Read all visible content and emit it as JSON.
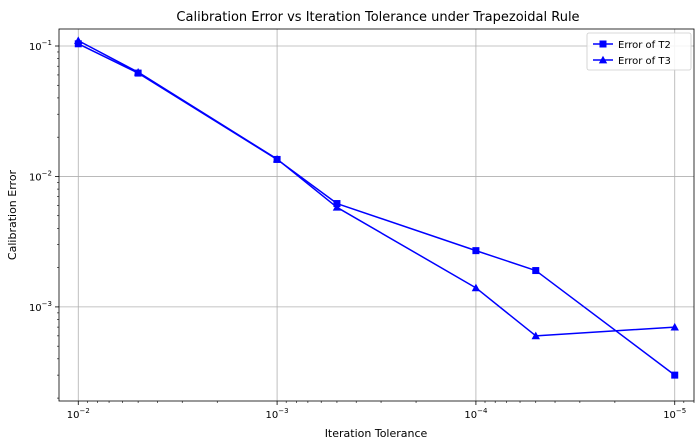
{
  "chart_data": {
    "type": "line",
    "title": "Calibration Error vs Iteration Tolerance under Trapezoidal Rule",
    "xlabel": "Iteration Tolerance",
    "ylabel": "Calibration Error",
    "x_scale": "log",
    "x_axis_inverted": true,
    "y_scale": "log",
    "xlim": [
      0.0125,
      8e-06
    ],
    "ylim": [
      0.00019,
      0.135
    ],
    "x": [
      0.01,
      0.005,
      0.001,
      0.0005,
      0.0001,
      5e-05,
      1e-05
    ],
    "x_ticks": [
      {
        "value": 0.01,
        "base": "10",
        "exp": "−2"
      },
      {
        "value": 0.001,
        "base": "10",
        "exp": "−3"
      },
      {
        "value": 0.0001,
        "base": "10",
        "exp": "−4"
      },
      {
        "value": 1e-05,
        "base": "10",
        "exp": "−5"
      }
    ],
    "y_ticks": [
      {
        "value": 0.1,
        "base": "10",
        "exp": "−1"
      },
      {
        "value": 0.01,
        "base": "10",
        "exp": "−2"
      },
      {
        "value": 0.001,
        "base": "10",
        "exp": "−3"
      }
    ],
    "series": [
      {
        "name": "Error of T2",
        "marker": "square",
        "color": "#0000ff",
        "values": [
          0.104,
          0.062,
          0.0135,
          0.0062,
          0.0027,
          0.0019,
          0.0003
        ]
      },
      {
        "name": "Error of T3",
        "marker": "triangle",
        "color": "#0000ff",
        "values": [
          0.11,
          0.063,
          0.0136,
          0.0058,
          0.0014,
          0.0006,
          0.0007
        ]
      }
    ],
    "grid": true,
    "legend_position": "top-right"
  }
}
